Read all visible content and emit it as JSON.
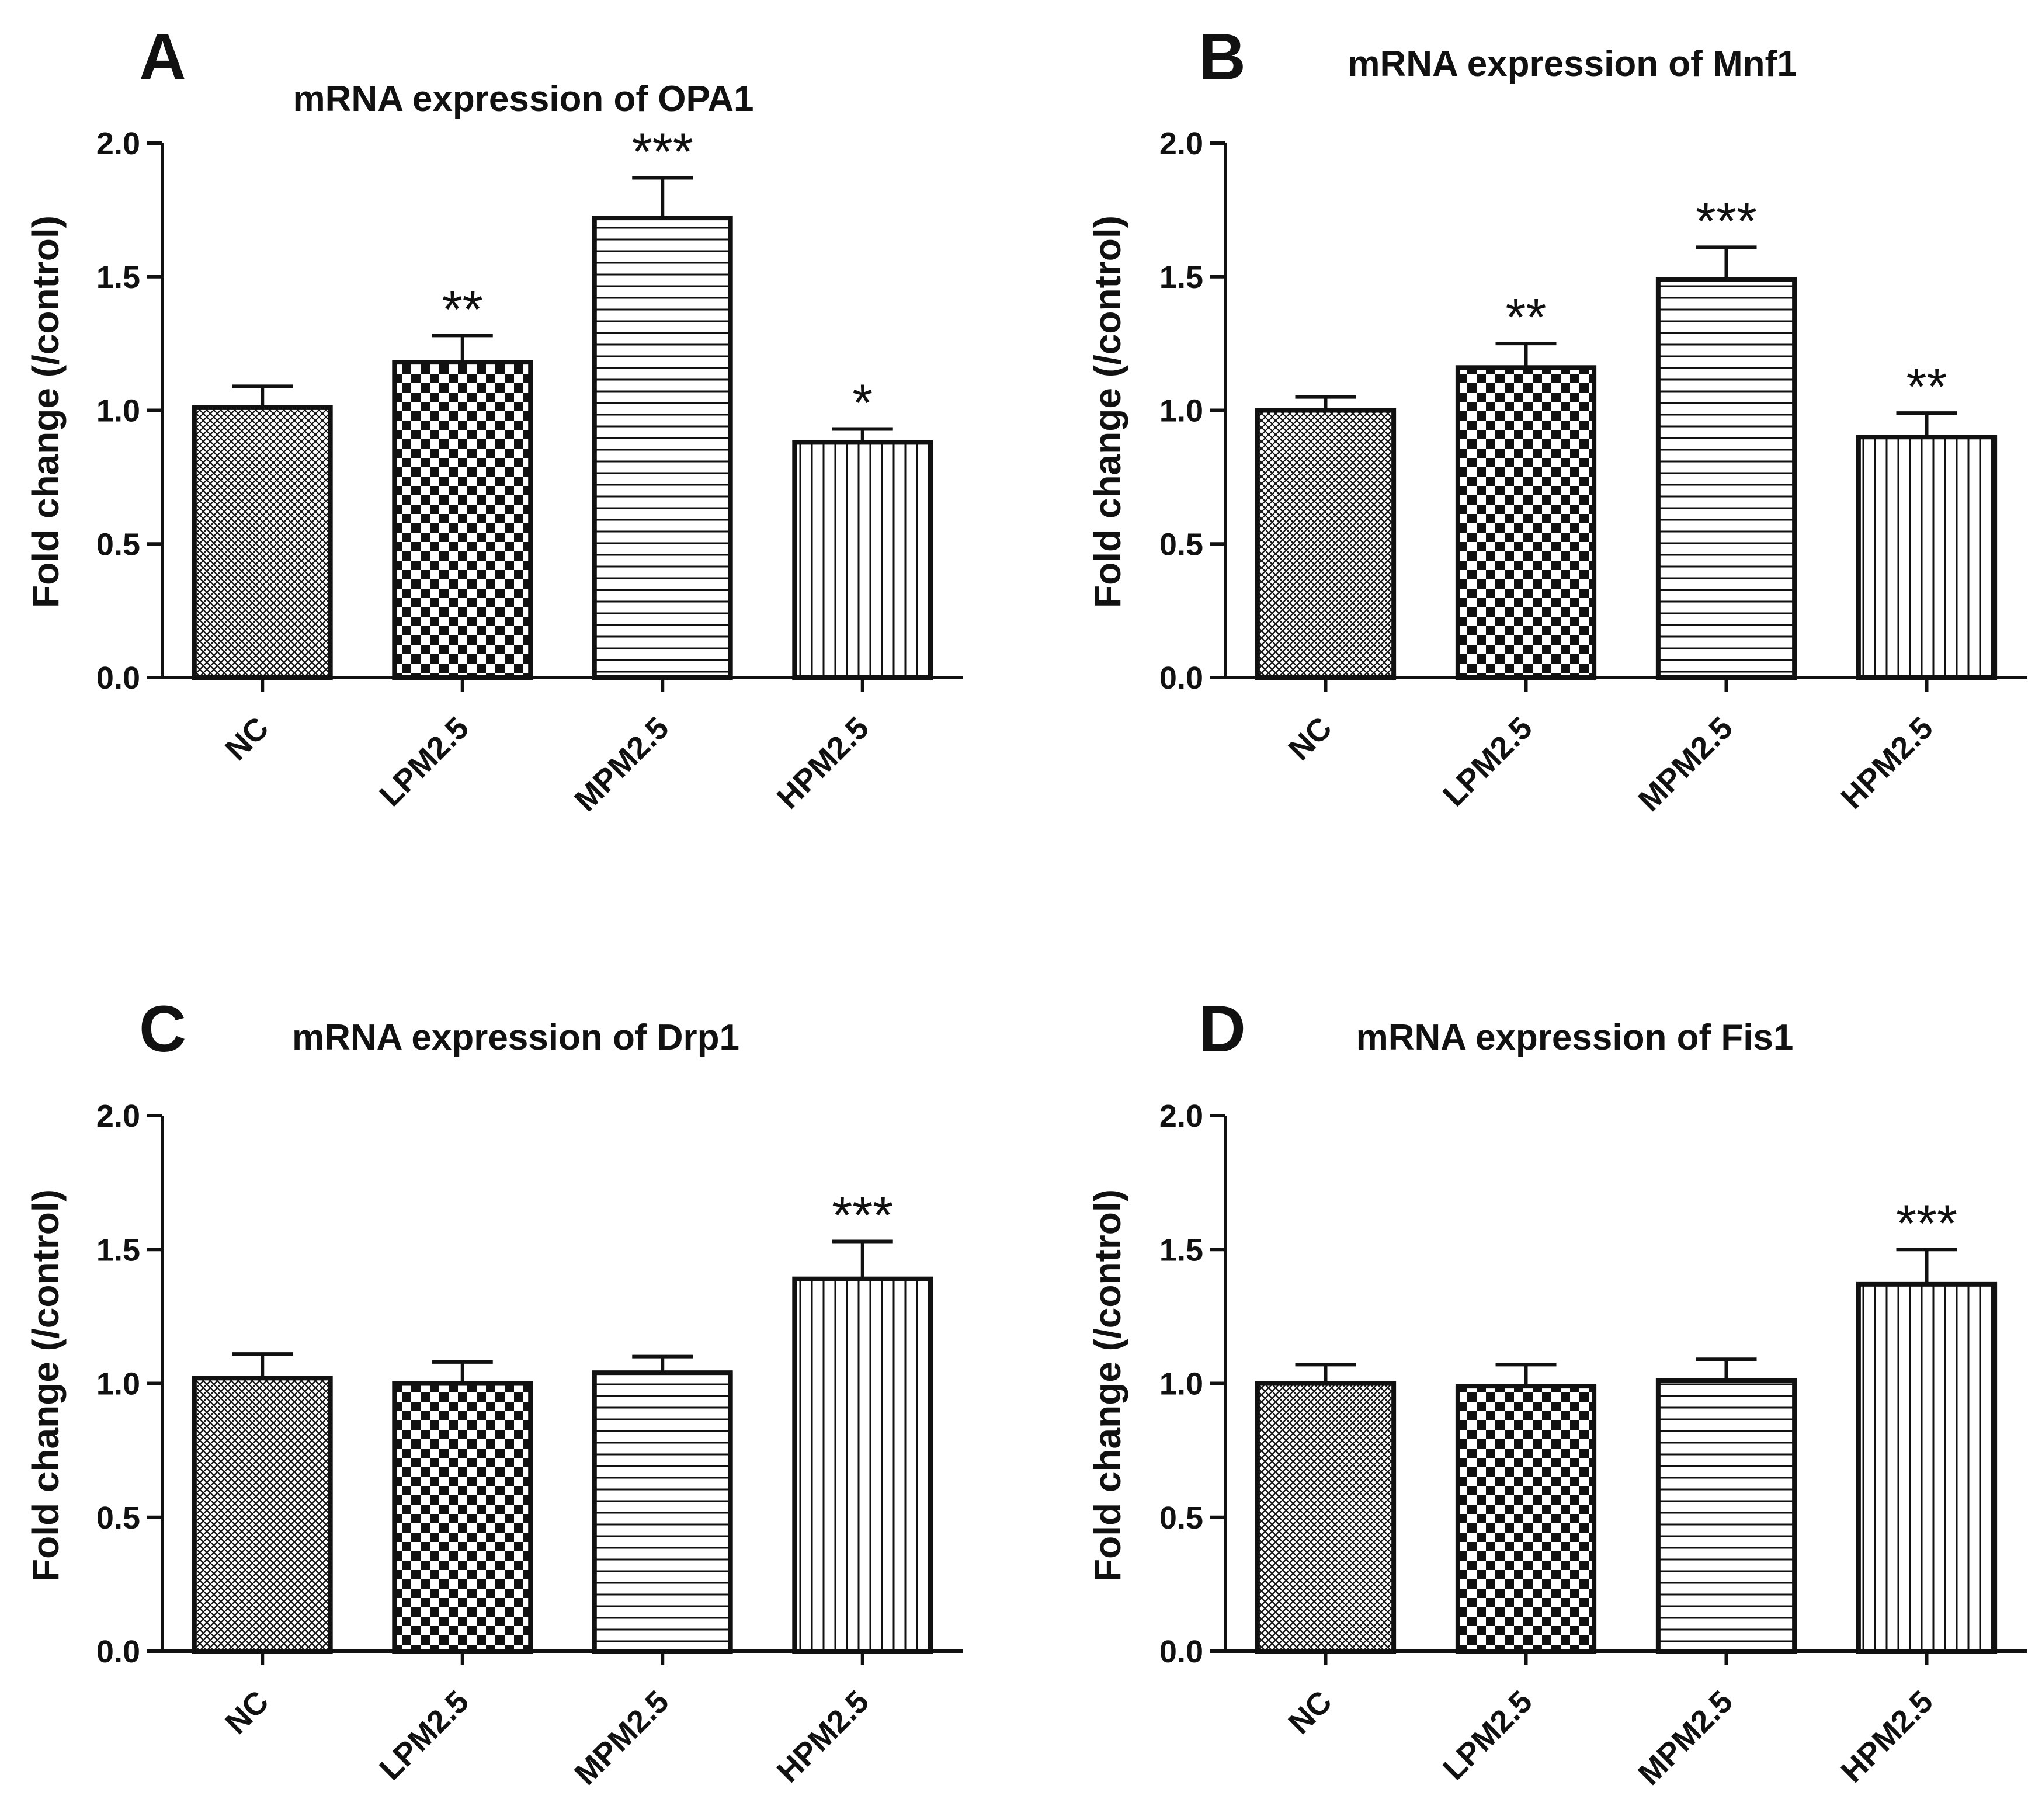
{
  "figure": {
    "panels": [
      {
        "letter": "A",
        "title": "mRNA expression of OPA1"
      },
      {
        "letter": "B",
        "title": "mRNA expression of Mnf1"
      },
      {
        "letter": "C",
        "title": "mRNA expression of Drp1"
      },
      {
        "letter": "D",
        "title": "mRNA expression of Fis1"
      }
    ]
  },
  "colors": {
    "ink": "#111111",
    "bar_fill": "#ffffff",
    "background": "#ffffff"
  },
  "patterns": [
    "fine-crosshatch-pattern",
    "checkerboard-pattern",
    "horizontal-stripes-pattern",
    "vertical-stripes-pattern"
  ],
  "chart_data": [
    {
      "type": "bar",
      "title": "mRNA expression of OPA1",
      "panel": "A",
      "categories": [
        "NC",
        "LPM2.5",
        "MPM2.5",
        "HPM2.5"
      ],
      "values": [
        1.01,
        1.18,
        1.72,
        0.88
      ],
      "errors": [
        0.08,
        0.1,
        0.15,
        0.05
      ],
      "significance": [
        "",
        "**",
        "***",
        "*"
      ],
      "xlabel": "",
      "ylabel": "Fold change (/control)",
      "ylim": [
        0,
        2.0
      ],
      "yticks": [
        "0.0",
        "0.5",
        "1.0",
        "1.5",
        "2.0"
      ],
      "grid": false
    },
    {
      "type": "bar",
      "title": "mRNA expression of Mnf1",
      "panel": "B",
      "categories": [
        "NC",
        "LPM2.5",
        "MPM2.5",
        "HPM2.5"
      ],
      "values": [
        1.0,
        1.16,
        1.49,
        0.9
      ],
      "errors": [
        0.05,
        0.09,
        0.12,
        0.09
      ],
      "significance": [
        "",
        "**",
        "***",
        "**"
      ],
      "xlabel": "",
      "ylabel": "Fold change (/control)",
      "ylim": [
        0,
        2.0
      ],
      "yticks": [
        "0.0",
        "0.5",
        "1.0",
        "1.5",
        "2.0"
      ],
      "grid": false
    },
    {
      "type": "bar",
      "title": "mRNA expression of Drp1",
      "panel": "C",
      "categories": [
        "NC",
        "LPM2.5",
        "MPM2.5",
        "HPM2.5"
      ],
      "values": [
        1.02,
        1.0,
        1.04,
        1.39
      ],
      "errors": [
        0.09,
        0.08,
        0.06,
        0.14
      ],
      "significance": [
        "",
        "",
        "",
        "***"
      ],
      "xlabel": "",
      "ylabel": "Fold change (/control)",
      "ylim": [
        0,
        2.0
      ],
      "yticks": [
        "0.0",
        "0.5",
        "1.0",
        "1.5",
        "2.0"
      ],
      "grid": false
    },
    {
      "type": "bar",
      "title": "mRNA expression of Fis1",
      "panel": "D",
      "categories": [
        "NC",
        "LPM2.5",
        "MPM2.5",
        "HPM2.5"
      ],
      "values": [
        1.0,
        0.99,
        1.01,
        1.37
      ],
      "errors": [
        0.07,
        0.08,
        0.08,
        0.13
      ],
      "significance": [
        "",
        "",
        "",
        "***"
      ],
      "xlabel": "",
      "ylabel": "Fold change (/control)",
      "ylim": [
        0,
        2.0
      ],
      "yticks": [
        "0.0",
        "0.5",
        "1.0",
        "1.5",
        "2.0"
      ],
      "grid": false
    }
  ]
}
